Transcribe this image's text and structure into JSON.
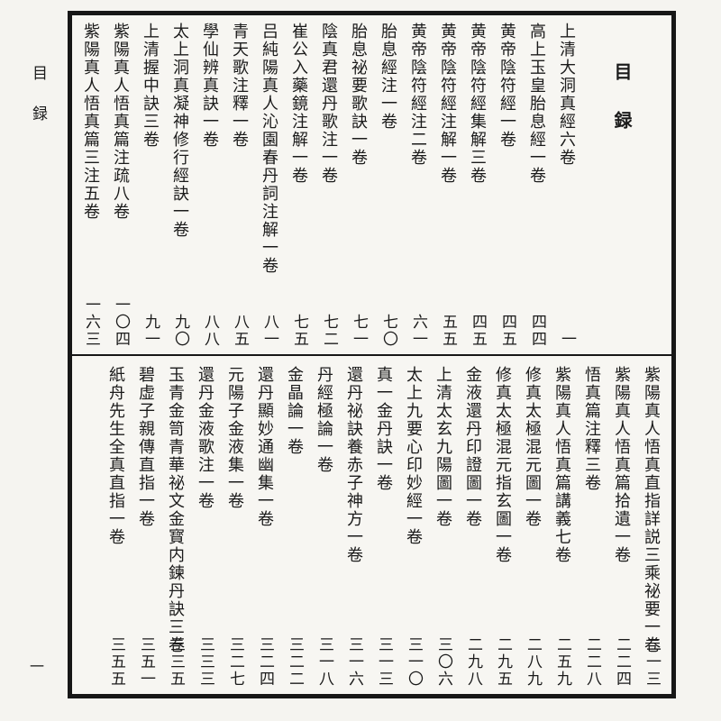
{
  "page": {
    "margin_label": "目録",
    "folio_number": "一"
  },
  "colors": {
    "ink": "#1b1b1b",
    "paper": "#f5f4f0",
    "border": "#171717"
  },
  "toc": {
    "header": "目録",
    "top_entries": [
      {
        "title": "上清大洞真經六卷",
        "page": "一"
      },
      {
        "title": "高上玉皇胎息經一卷",
        "page": "四四"
      },
      {
        "title": "黄帝陰符經一卷",
        "page": "四五"
      },
      {
        "title": "黄帝陰符經集解三卷",
        "page": "四五"
      },
      {
        "title": "黄帝陰符經注解一卷",
        "page": "五五"
      },
      {
        "title": "黄帝陰符經注二卷",
        "page": "六一"
      },
      {
        "title": "胎息經注一卷",
        "page": "七〇"
      },
      {
        "title": "胎息祕要歌訣一卷",
        "page": "七一"
      },
      {
        "title": "陰真君還丹歌注一卷",
        "page": "七二"
      },
      {
        "title": "崔公入藥鏡注解一卷",
        "page": "七五"
      },
      {
        "title": "吕純陽真人沁園春丹詞注解一卷",
        "page": "八一"
      },
      {
        "title": "青天歌注釋一卷",
        "page": "八五"
      },
      {
        "title": "學仙辨真訣一卷",
        "page": "八八"
      },
      {
        "title": "太上洞真凝神修行經訣一卷",
        "page": "九〇"
      },
      {
        "title": "上清握中訣三卷",
        "page": "九一"
      },
      {
        "title": "紫陽真人悟真篇注疏八卷",
        "page": "一〇四"
      },
      {
        "title": "紫陽真人悟真篇三注五卷",
        "page": "一六三"
      }
    ],
    "bottom_entries": [
      {
        "title": "紫陽真人悟真直指詳説三乘祕要一卷",
        "page": "二一三"
      },
      {
        "title": "紫陽真人悟真篇拾遺一卷",
        "page": "二二四"
      },
      {
        "title": "悟真篇注釋三卷",
        "page": "二二八"
      },
      {
        "title": "紫陽真人悟真篇講義七卷",
        "page": "二五九"
      },
      {
        "title": "修真太極混元圖一卷",
        "page": "二八九"
      },
      {
        "title": "修真太極混元指玄圖一卷",
        "page": "二九五"
      },
      {
        "title": "金液還丹印證圖一卷",
        "page": "二九八"
      },
      {
        "title": "上清太玄九陽圖一卷",
        "page": "三〇六"
      },
      {
        "title": "太上九要心印妙經一卷",
        "page": "三一〇"
      },
      {
        "title": "真一金丹訣一卷",
        "page": "三一三"
      },
      {
        "title": "還丹祕訣養赤子神方一卷",
        "page": "三一六"
      },
      {
        "title": "丹經極論一卷",
        "page": "三一八"
      },
      {
        "title": "金晶論一卷",
        "page": "三二二"
      },
      {
        "title": "還丹顯妙通幽集一卷",
        "page": "三二四"
      },
      {
        "title": "元陽子金液集一卷",
        "page": "三二七"
      },
      {
        "title": "還丹金液歌注一卷",
        "page": "三三三"
      },
      {
        "title": "玉青金笥青華祕文金寳内鍊丹訣三卷",
        "page": "三三五"
      },
      {
        "title": "碧虚子親傳直指一卷",
        "page": "三五一"
      },
      {
        "title": "紙舟先生全真直指一卷",
        "page": "三五五"
      }
    ]
  }
}
